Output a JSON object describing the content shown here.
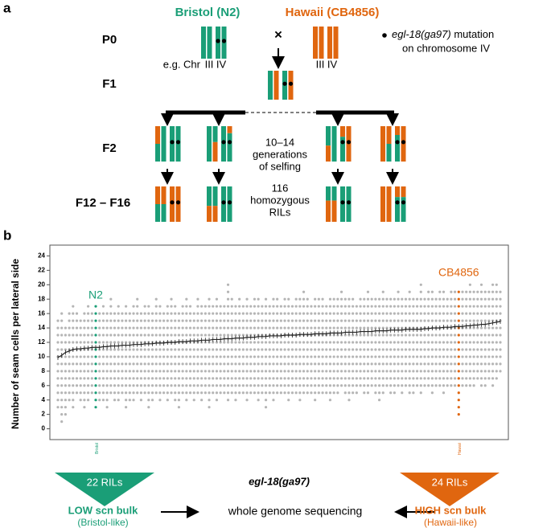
{
  "panel_a": {
    "label": "a",
    "bristol": "Bristol (N2)",
    "hawaii": "Hawaii (CB4856)",
    "cross": "×",
    "mutation_gene": "egl-18(ga97)",
    "mutation_text": "mutation",
    "mutation_line2": "on chromosome IV",
    "chr_prefix": "e.g. Chr",
    "chr_iii": "III",
    "chr_iv": "IV",
    "generations": [
      "P0",
      "F1",
      "F2",
      "F12 – F16"
    ],
    "selfing": [
      "10–14",
      "generations",
      "of selfing"
    ],
    "rils": [
      "116",
      "homozygous",
      "RILs"
    ]
  },
  "chart_data": {
    "type": "strip",
    "panel_label": "b",
    "y_label": "Number of seam cells per lateral side",
    "x_label": "egl-18(ga97)",
    "ylim": [
      -1.5,
      25.5
    ],
    "yticks": [
      0,
      2,
      4,
      6,
      8,
      10,
      12,
      14,
      16,
      18,
      20,
      22,
      24
    ],
    "categories": [
      null,
      null,
      null,
      null,
      null,
      null,
      null,
      null,
      null,
      null,
      "Bristol",
      null,
      null,
      null,
      null,
      null,
      null,
      null,
      null,
      null,
      null,
      null,
      null,
      null,
      null,
      null,
      null,
      null,
      null,
      null,
      null,
      null,
      null,
      null,
      null,
      null,
      null,
      null,
      null,
      null,
      null,
      null,
      null,
      null,
      null,
      null,
      null,
      null,
      null,
      null,
      null,
      null,
      null,
      null,
      null,
      null,
      null,
      null,
      null,
      null,
      null,
      null,
      null,
      null,
      null,
      null,
      null,
      null,
      null,
      null,
      null,
      null,
      null,
      null,
      null,
      null,
      null,
      null,
      null,
      null,
      null,
      null,
      null,
      null,
      null,
      null,
      null,
      null,
      null,
      null,
      null,
      null,
      null,
      null,
      null,
      null,
      null,
      null,
      null,
      null,
      null,
      null,
      null,
      null,
      null,
      null,
      "Hawaii",
      null,
      null,
      null,
      null,
      null,
      null,
      null,
      null,
      null,
      null,
      null
    ],
    "means": [
      9.9,
      10.2,
      10.6,
      10.8,
      11.0,
      11.1,
      11.1,
      11.2,
      11.2,
      11.3,
      11.3,
      11.3,
      11.4,
      11.4,
      11.5,
      11.5,
      11.5,
      11.6,
      11.6,
      11.6,
      11.7,
      11.7,
      11.7,
      11.8,
      11.8,
      11.8,
      11.9,
      11.9,
      11.9,
      12.0,
      12.0,
      12.0,
      12.1,
      12.1,
      12.1,
      12.2,
      12.2,
      12.2,
      12.3,
      12.3,
      12.3,
      12.4,
      12.4,
      12.4,
      12.5,
      12.5,
      12.5,
      12.6,
      12.6,
      12.6,
      12.7,
      12.7,
      12.7,
      12.8,
      12.8,
      12.8,
      12.9,
      12.9,
      12.9,
      12.9,
      13.0,
      13.0,
      13.0,
      13.0,
      13.1,
      13.1,
      13.1,
      13.1,
      13.2,
      13.2,
      13.2,
      13.2,
      13.3,
      13.3,
      13.3,
      13.3,
      13.4,
      13.4,
      13.4,
      13.4,
      13.5,
      13.5,
      13.5,
      13.5,
      13.6,
      13.6,
      13.6,
      13.6,
      13.7,
      13.7,
      13.7,
      13.7,
      13.8,
      13.8,
      13.8,
      13.8,
      13.8,
      13.9,
      13.9,
      14.0,
      14.0,
      14.0,
      14.1,
      14.1,
      14.1,
      14.2,
      14.2,
      14.2,
      14.3,
      14.3,
      14.4,
      14.4,
      14.5,
      14.5,
      14.6,
      14.7,
      14.8,
      14.9
    ],
    "min": [
      3,
      1,
      2,
      4,
      3,
      5,
      4,
      3,
      4,
      5,
      3,
      4,
      4,
      3,
      5,
      4,
      4,
      5,
      3,
      4,
      4,
      5,
      4,
      5,
      3,
      4,
      5,
      4,
      5,
      4,
      5,
      4,
      3,
      5,
      4,
      5,
      4,
      5,
      4,
      5,
      3,
      5,
      4,
      5,
      5,
      4,
      5,
      4,
      5,
      5,
      4,
      5,
      5,
      4,
      5,
      3,
      5,
      4,
      5,
      5,
      5,
      4,
      5,
      5,
      4,
      5,
      5,
      5,
      4,
      5,
      5,
      5,
      4,
      5,
      5,
      6,
      5,
      4,
      5,
      5,
      6,
      5,
      5,
      6,
      5,
      4,
      5,
      6,
      5,
      5,
      6,
      5,
      6,
      5,
      5,
      6,
      5,
      6,
      6,
      5,
      6,
      6,
      5,
      6,
      6,
      6,
      2,
      6,
      6,
      6,
      6,
      7,
      6,
      6,
      7,
      6,
      7,
      8
    ],
    "max": [
      15,
      16,
      14,
      16,
      17,
      16,
      15,
      16,
      17,
      16,
      17,
      16,
      17,
      16,
      18,
      16,
      17,
      16,
      17,
      16,
      17,
      18,
      16,
      17,
      17,
      16,
      18,
      17,
      16,
      17,
      18,
      17,
      16,
      17,
      18,
      17,
      16,
      18,
      17,
      17,
      18,
      17,
      18,
      17,
      17,
      20,
      18,
      17,
      18,
      17,
      18,
      17,
      18,
      18,
      17,
      18,
      17,
      18,
      18,
      17,
      18,
      18,
      17,
      18,
      18,
      19,
      18,
      17,
      18,
      18,
      18,
      17,
      18,
      18,
      18,
      19,
      18,
      18,
      18,
      17,
      18,
      18,
      19,
      18,
      18,
      18,
      19,
      18,
      18,
      18,
      19,
      18,
      18,
      19,
      18,
      18,
      20,
      18,
      19,
      19,
      18,
      19,
      19,
      18,
      19,
      19,
      19,
      19,
      19,
      20,
      19,
      19,
      20,
      19,
      19,
      20,
      20,
      19
    ],
    "point_color": "#b5b5b5",
    "line_color": "#222222",
    "label_groups": [
      {
        "from": 0,
        "to": 22,
        "color": "#1a9e77"
      },
      {
        "from": 93,
        "to": 117,
        "color": "#e0660f"
      }
    ],
    "annotations": [
      {
        "text": "N2",
        "category": 10,
        "color": "#1a9e77"
      },
      {
        "text": "CB4856",
        "category": 106,
        "color": "#e0660f"
      }
    ]
  },
  "bulks": {
    "low": {
      "count": "22 RILs",
      "name": "LOW scn bulk",
      "sub": "(Bristol-like)"
    },
    "method": "whole genome sequencing",
    "high": {
      "count": "24 RILs",
      "name": "HIGH scn bulk",
      "sub": "(Hawaii-like)"
    }
  }
}
